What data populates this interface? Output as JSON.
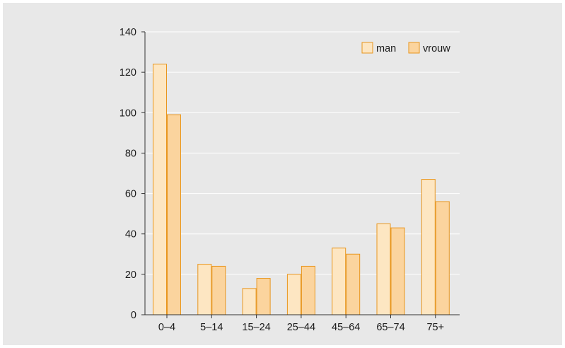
{
  "colors": {
    "background": "#e8e8e8",
    "man_fill": "#fde6c2",
    "vrouw_fill": "#fbd49e",
    "bar_stroke": "#e8961e",
    "grid": "#ffffff",
    "axis": "#333333"
  },
  "chart_data": {
    "type": "bar",
    "title": "",
    "xlabel": "",
    "ylabel": "",
    "categories": [
      "0–4",
      "5–14",
      "15–24",
      "25–44",
      "45–64",
      "65–74",
      "75+"
    ],
    "series": [
      {
        "name": "man",
        "values": [
          124,
          25,
          13,
          20,
          33,
          45,
          67
        ]
      },
      {
        "name": "vrouw",
        "values": [
          99,
          24,
          18,
          24,
          30,
          43,
          56
        ]
      }
    ],
    "ylim": [
      0,
      140
    ],
    "yticks": [
      "0",
      "20",
      "40",
      "60",
      "80",
      "100",
      "120",
      "140"
    ],
    "grid": true,
    "legend_position": "top-right"
  }
}
